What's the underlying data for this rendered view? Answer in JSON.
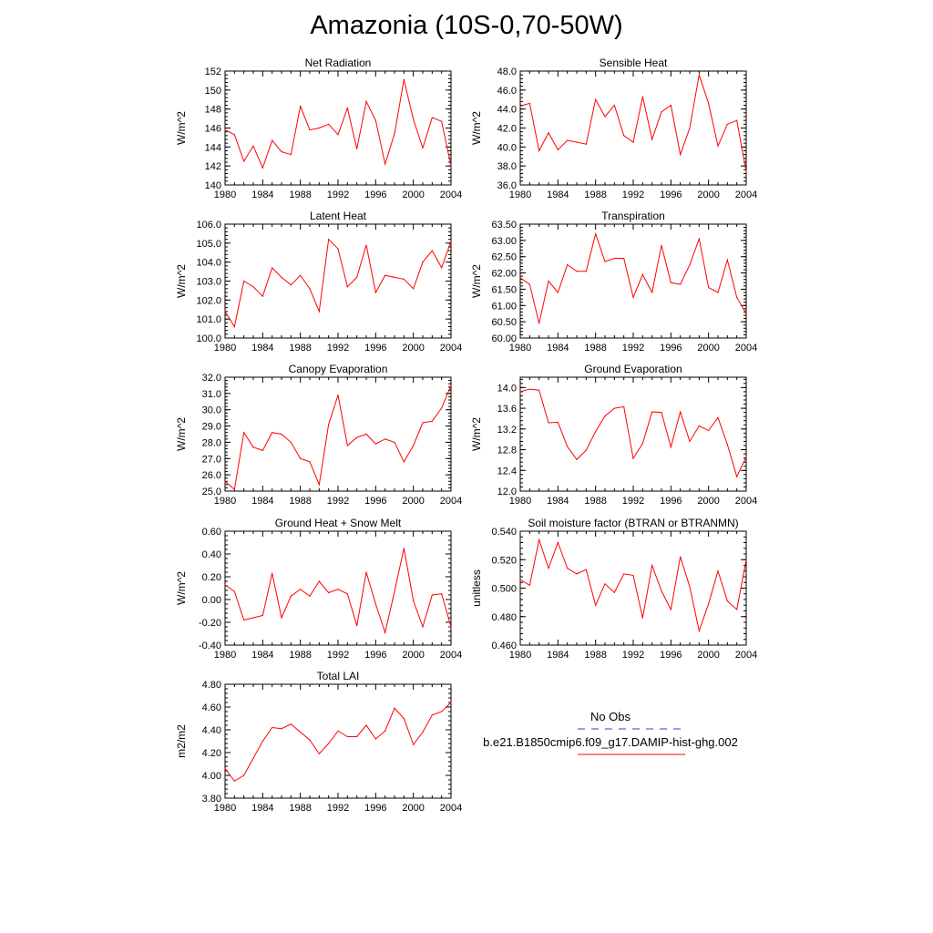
{
  "title": "Amazonia (10S-0,70-50W)",
  "legend": {
    "obs_label": "No Obs",
    "obs_color": "#3b3bd6",
    "model_label": "b.e21.B1850cmip6.f09_g17.DAMIP-hist-ghg.002",
    "model_color": "#ff0000"
  },
  "chart_data": [
    {
      "type": "line",
      "title": "Net Radiation",
      "ylabel": "W/m^2",
      "xlim": [
        1980,
        2004
      ],
      "ylim": [
        140,
        152
      ],
      "yticks": [
        "140",
        "142",
        "144",
        "146",
        "148",
        "150",
        "152"
      ],
      "xticks": [
        "1980",
        "1984",
        "1988",
        "1992",
        "1996",
        "2000",
        "2004"
      ],
      "x": [
        1980,
        1981,
        1982,
        1983,
        1984,
        1985,
        1986,
        1987,
        1988,
        1989,
        1990,
        1991,
        1992,
        1993,
        1994,
        1995,
        1996,
        1997,
        1998,
        1999,
        2000,
        2001,
        2002,
        2003,
        2004
      ],
      "series": [
        {
          "values": [
            145.8,
            145.3,
            142.5,
            144.1,
            141.8,
            144.7,
            143.5,
            143.2,
            148.3,
            145.8,
            146.0,
            146.4,
            145.3,
            148.1,
            143.8,
            148.8,
            146.8,
            142.2,
            145.4,
            151.1,
            146.9,
            143.9,
            147.1,
            146.7,
            142.0
          ]
        }
      ]
    },
    {
      "type": "line",
      "title": "Sensible Heat",
      "ylabel": "W/m^2",
      "xlim": [
        1980,
        2004
      ],
      "ylim": [
        36.0,
        48.0
      ],
      "yticks": [
        "36.0",
        "38.0",
        "40.0",
        "42.0",
        "44.0",
        "46.0",
        "48.0"
      ],
      "xticks": [
        "1980",
        "1984",
        "1988",
        "1992",
        "1996",
        "2000",
        "2004"
      ],
      "x": [
        1980,
        1981,
        1982,
        1983,
        1984,
        1985,
        1986,
        1987,
        1988,
        1989,
        1990,
        1991,
        1992,
        1993,
        1994,
        1995,
        1996,
        1997,
        1998,
        1999,
        2000,
        2001,
        2002,
        2003,
        2004
      ],
      "series": [
        {
          "values": [
            44.3,
            44.6,
            39.6,
            41.5,
            39.7,
            40.7,
            40.5,
            40.3,
            45.0,
            43.2,
            44.4,
            41.2,
            40.5,
            45.3,
            40.8,
            43.7,
            44.4,
            39.2,
            42.0,
            47.6,
            44.6,
            40.1,
            42.4,
            42.8,
            37.4
          ]
        }
      ]
    },
    {
      "type": "line",
      "title": "Latent Heat",
      "ylabel": "W/m^2",
      "xlim": [
        1980,
        2004
      ],
      "ylim": [
        100.0,
        106.0
      ],
      "yticks": [
        "100.0",
        "101.0",
        "102.0",
        "103.0",
        "104.0",
        "105.0",
        "106.0"
      ],
      "xticks": [
        "1980",
        "1984",
        "1988",
        "1992",
        "1996",
        "2000",
        "2004"
      ],
      "x": [
        1980,
        1981,
        1982,
        1983,
        1984,
        1985,
        1986,
        1987,
        1988,
        1989,
        1990,
        1991,
        1992,
        1993,
        1994,
        1995,
        1996,
        1997,
        1998,
        1999,
        2000,
        2001,
        2002,
        2003,
        2004
      ],
      "series": [
        {
          "values": [
            101.4,
            100.6,
            103.0,
            102.7,
            102.2,
            103.7,
            103.2,
            102.8,
            103.3,
            102.6,
            101.4,
            105.2,
            104.7,
            102.7,
            103.2,
            104.9,
            102.4,
            103.3,
            103.2,
            103.1,
            102.6,
            104.0,
            104.6,
            103.7,
            105.1
          ]
        }
      ]
    },
    {
      "type": "line",
      "title": "Transpiration",
      "ylabel": "W/m^2",
      "xlim": [
        1980,
        2004
      ],
      "ylim": [
        60.0,
        63.5
      ],
      "yticks": [
        "60.00",
        "60.50",
        "61.00",
        "61.50",
        "62.00",
        "62.50",
        "63.00",
        "63.50"
      ],
      "xticks": [
        "1980",
        "1984",
        "1988",
        "1992",
        "1996",
        "2000",
        "2004"
      ],
      "x": [
        1980,
        1981,
        1982,
        1983,
        1984,
        1985,
        1986,
        1987,
        1988,
        1989,
        1990,
        1991,
        1992,
        1993,
        1994,
        1995,
        1996,
        1997,
        1998,
        1999,
        2000,
        2001,
        2002,
        2003,
        2004
      ],
      "series": [
        {
          "values": [
            61.85,
            61.65,
            60.45,
            61.75,
            61.4,
            62.25,
            62.05,
            62.05,
            63.2,
            62.35,
            62.45,
            62.45,
            61.25,
            61.95,
            61.4,
            62.85,
            61.7,
            61.65,
            62.25,
            63.05,
            61.55,
            61.4,
            62.4,
            61.25,
            60.75
          ]
        }
      ]
    },
    {
      "type": "line",
      "title": "Canopy Evaporation",
      "ylabel": "W/m^2",
      "xlim": [
        1980,
        2004
      ],
      "ylim": [
        25.0,
        32.0
      ],
      "yticks": [
        "25.0",
        "26.0",
        "27.0",
        "28.0",
        "29.0",
        "30.0",
        "31.0",
        "32.0"
      ],
      "xticks": [
        "1980",
        "1984",
        "1988",
        "1992",
        "1996",
        "2000",
        "2004"
      ],
      "x": [
        1980,
        1981,
        1982,
        1983,
        1984,
        1985,
        1986,
        1987,
        1988,
        1989,
        1990,
        1991,
        1992,
        1993,
        1994,
        1995,
        1996,
        1997,
        1998,
        1999,
        2000,
        2001,
        2002,
        2003,
        2004
      ],
      "series": [
        {
          "values": [
            25.6,
            25.1,
            28.6,
            27.7,
            27.5,
            28.6,
            28.5,
            28.0,
            27.0,
            26.8,
            25.4,
            29.1,
            30.9,
            27.8,
            28.3,
            28.5,
            27.9,
            28.2,
            28.0,
            26.8,
            27.8,
            29.2,
            29.3,
            30.1,
            31.5
          ]
        }
      ]
    },
    {
      "type": "line",
      "title": "Ground Evaporation",
      "ylabel": "W/m^2",
      "xlim": [
        1980,
        2004
      ],
      "ylim": [
        12.0,
        14.2
      ],
      "yticks": [
        "12.0",
        "12.4",
        "12.8",
        "13.2",
        "13.6",
        "14.0"
      ],
      "xticks": [
        "1980",
        "1984",
        "1988",
        "1992",
        "1996",
        "2000",
        "2004"
      ],
      "x": [
        1980,
        1981,
        1982,
        1983,
        1984,
        1985,
        1986,
        1987,
        1988,
        1989,
        1990,
        1991,
        1992,
        1993,
        1994,
        1995,
        1996,
        1997,
        1998,
        1999,
        2000,
        2001,
        2002,
        2003,
        2004
      ],
      "series": [
        {
          "values": [
            13.92,
            13.97,
            13.95,
            13.32,
            13.33,
            12.86,
            12.61,
            12.79,
            13.15,
            13.45,
            13.6,
            13.63,
            12.63,
            12.92,
            13.53,
            13.52,
            12.85,
            13.53,
            12.96,
            13.26,
            13.17,
            13.42,
            12.9,
            12.28,
            12.66
          ]
        }
      ]
    },
    {
      "type": "line",
      "title": "Ground Heat + Snow Melt",
      "ylabel": "W/m^2",
      "xlim": [
        1980,
        2004
      ],
      "ylim": [
        -0.4,
        0.6
      ],
      "yticks": [
        "-0.40",
        "-0.20",
        "0.00",
        "0.20",
        "0.40",
        "0.60"
      ],
      "xticks": [
        "1980",
        "1984",
        "1988",
        "1992",
        "1996",
        "2000",
        "2004"
      ],
      "x": [
        1980,
        1981,
        1982,
        1983,
        1984,
        1985,
        1986,
        1987,
        1988,
        1989,
        1990,
        1991,
        1992,
        1993,
        1994,
        1995,
        1996,
        1997,
        1998,
        1999,
        2000,
        2001,
        2002,
        2003,
        2004
      ],
      "series": [
        {
          "values": [
            0.13,
            0.07,
            -0.18,
            -0.16,
            -0.14,
            0.23,
            -0.16,
            0.03,
            0.09,
            0.03,
            0.16,
            0.06,
            0.09,
            0.05,
            -0.23,
            0.24,
            -0.04,
            -0.29,
            0.07,
            0.45,
            -0.01,
            -0.24,
            0.04,
            0.05,
            -0.24
          ]
        }
      ]
    },
    {
      "type": "line",
      "title": "Soil moisture factor (BTRAN or BTRANMN)",
      "ylabel": "unitless",
      "xlim": [
        1980,
        2004
      ],
      "ylim": [
        0.46,
        0.54
      ],
      "yticks": [
        "0.460",
        "0.480",
        "0.500",
        "0.520",
        "0.540"
      ],
      "xticks": [
        "1980",
        "1984",
        "1988",
        "1992",
        "1996",
        "2000",
        "2004"
      ],
      "x": [
        1980,
        1981,
        1982,
        1983,
        1984,
        1985,
        1986,
        1987,
        1988,
        1989,
        1990,
        1991,
        1992,
        1993,
        1994,
        1995,
        1996,
        1997,
        1998,
        1999,
        2000,
        2001,
        2002,
        2003,
        2004
      ],
      "series": [
        {
          "values": [
            0.506,
            0.502,
            0.534,
            0.514,
            0.532,
            0.514,
            0.51,
            0.513,
            0.488,
            0.503,
            0.497,
            0.51,
            0.509,
            0.479,
            0.516,
            0.498,
            0.485,
            0.522,
            0.501,
            0.47,
            0.489,
            0.512,
            0.491,
            0.485,
            0.52
          ]
        }
      ]
    },
    {
      "type": "line",
      "title": "Total LAI",
      "ylabel": "m2/m2",
      "xlim": [
        1980,
        2004
      ],
      "ylim": [
        3.8,
        4.8
      ],
      "yticks": [
        "3.80",
        "4.00",
        "4.20",
        "4.40",
        "4.60",
        "4.80"
      ],
      "xticks": [
        "1980",
        "1984",
        "1988",
        "1992",
        "1996",
        "2000",
        "2004"
      ],
      "x": [
        1980,
        1981,
        1982,
        1983,
        1984,
        1985,
        1986,
        1987,
        1988,
        1989,
        1990,
        1991,
        1992,
        1993,
        1994,
        1995,
        1996,
        1997,
        1998,
        1999,
        2000,
        2001,
        2002,
        2003,
        2004
      ],
      "series": [
        {
          "values": [
            4.06,
            3.95,
            4.0,
            4.15,
            4.3,
            4.42,
            4.41,
            4.45,
            4.38,
            4.31,
            4.19,
            4.28,
            4.39,
            4.34,
            4.34,
            4.44,
            4.32,
            4.39,
            4.59,
            4.5,
            4.27,
            4.38,
            4.53,
            4.56,
            4.64
          ]
        }
      ]
    }
  ]
}
